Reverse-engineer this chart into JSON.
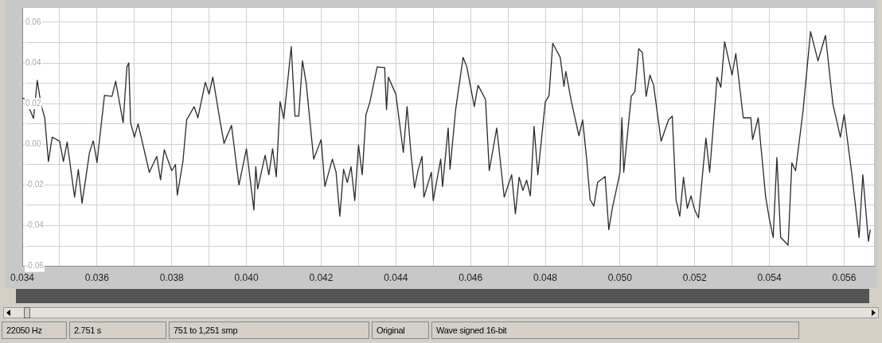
{
  "chart_data": {
    "type": "line",
    "x": [
      0.034,
      0.0341,
      0.0342,
      0.0343,
      0.0344,
      0.0345,
      0.0346,
      0.0347,
      0.0348,
      0.035,
      0.0351,
      0.0352,
      0.0354,
      0.0355,
      0.0356,
      0.0358,
      0.0359,
      0.036,
      0.0362,
      0.0364,
      0.0365,
      0.0367,
      0.0368,
      0.03685,
      0.0369,
      0.037,
      0.0371,
      0.0374,
      0.0376,
      0.0377,
      0.0378,
      0.038,
      0.0381,
      0.03815,
      0.0383,
      0.0384,
      0.0386,
      0.0387,
      0.0389,
      0.039,
      0.0391,
      0.0393,
      0.0394,
      0.0396,
      0.0398,
      0.04,
      0.0402,
      0.04025,
      0.0403,
      0.0405,
      0.0406,
      0.0407,
      0.0408,
      0.0409,
      0.041,
      0.0412,
      0.0413,
      0.0414,
      0.0415,
      0.0416,
      0.0418,
      0.042,
      0.0421,
      0.0423,
      0.0424,
      0.0425,
      0.0426,
      0.0427,
      0.0428,
      0.0429,
      0.043,
      0.0431,
      0.0432,
      0.0433,
      0.0435,
      0.0437,
      0.04375,
      0.0438,
      0.044,
      0.0442,
      0.0443,
      0.0444,
      0.0445,
      0.0446,
      0.0447,
      0.04475,
      0.04495,
      0.045,
      0.0452,
      0.04525,
      0.0454,
      0.04545,
      0.0456,
      0.0458,
      0.0459,
      0.0461,
      0.0462,
      0.0464,
      0.0465,
      0.0467,
      0.0469,
      0.0471,
      0.0472,
      0.0473,
      0.0474,
      0.0475,
      0.0476,
      0.0477,
      0.0478,
      0.048,
      0.0481,
      0.0482,
      0.0484,
      0.0485,
      0.04855,
      0.0487,
      0.0489,
      0.049,
      0.0491,
      0.0492,
      0.0493,
      0.0494,
      0.0496,
      0.0497,
      0.0498,
      0.05,
      0.05005,
      0.0501,
      0.0503,
      0.0504,
      0.0505,
      0.0506,
      0.0507,
      0.0508,
      0.0509,
      0.0511,
      0.0513,
      0.0514,
      0.0515,
      0.0516,
      0.0517,
      0.0518,
      0.0519,
      0.052,
      0.0521,
      0.0523,
      0.0524,
      0.0526,
      0.0527,
      0.0528,
      0.053,
      0.0531,
      0.0533,
      0.0535,
      0.05355,
      0.0537,
      0.0539,
      0.054,
      0.0541,
      0.0542,
      0.0543,
      0.0545,
      0.0546,
      0.0547,
      0.0549,
      0.0551,
      0.0553,
      0.0555,
      0.0557,
      0.0559,
      0.056,
      0.0562,
      0.0564,
      0.0565,
      0.05665,
      0.0567
    ],
    "series": [
      {
        "color": "#2a2a2a",
        "values": [
          0.0227,
          0.022,
          0.017,
          0.0127,
          0.0314,
          0.0196,
          0.013,
          -0.0085,
          0.0035,
          0.0015,
          -0.0085,
          0.001,
          -0.026,
          -0.0124,
          -0.029,
          -0.004,
          0.0017,
          -0.009,
          0.024,
          0.0235,
          0.031,
          0.0106,
          0.038,
          0.04,
          0.0106,
          0.0035,
          0.01,
          -0.0138,
          -0.006,
          -0.0175,
          -0.0027,
          -0.013,
          -0.01,
          -0.025,
          -0.0085,
          0.012,
          0.0185,
          0.013,
          0.0305,
          0.0246,
          0.033,
          0.0108,
          0.0004,
          0.0093,
          -0.02,
          -0.0022,
          -0.0323,
          -0.011,
          -0.022,
          -0.0054,
          -0.015,
          -0.0022,
          -0.016,
          0.021,
          0.0126,
          0.048,
          0.0138,
          0.0138,
          0.041,
          0.03,
          -0.0073,
          0.0023,
          -0.0208,
          -0.0073,
          -0.0138,
          -0.0354,
          -0.0123,
          -0.0188,
          -0.011,
          -0.0277,
          -0.0004,
          -0.015,
          0.0146,
          0.0204,
          0.038,
          0.0377,
          0.017,
          0.033,
          0.0246,
          -0.004,
          0.0185,
          -0.0035,
          -0.0215,
          -0.0123,
          -0.006,
          -0.026,
          -0.0138,
          -0.0277,
          -0.0073,
          -0.0208,
          0.008,
          -0.0123,
          0.017,
          0.0427,
          0.038,
          0.0185,
          0.029,
          0.022,
          -0.013,
          0.008,
          -0.026,
          -0.015,
          -0.0342,
          -0.0162,
          -0.0227,
          -0.0177,
          -0.0254,
          0.0088,
          -0.015,
          0.0208,
          0.024,
          0.0496,
          0.0427,
          0.0285,
          0.0358,
          0.0208,
          0.0042,
          0.012,
          -0.006,
          -0.0273,
          -0.0304,
          -0.0188,
          -0.0158,
          -0.042,
          -0.031,
          -0.0138,
          0.013,
          -0.0138,
          0.0235,
          0.026,
          0.047,
          0.045,
          0.0235,
          0.034,
          0.029,
          0.0015,
          0.012,
          0.0138,
          -0.0273,
          -0.0354,
          -0.0162,
          -0.0315,
          -0.0254,
          -0.0323,
          -0.0362,
          0.003,
          -0.0138,
          0.033,
          0.028,
          0.0504,
          0.034,
          0.0446,
          0.013,
          0.013,
          0.0023,
          0.013,
          -0.026,
          -0.037,
          -0.0458,
          -0.0065,
          -0.0458,
          -0.0496,
          -0.0092,
          -0.013,
          0.0165,
          0.0554,
          0.041,
          0.0535,
          0.0196,
          0.0035,
          0.0146,
          -0.0138,
          -0.0458,
          -0.015,
          -0.0477,
          -0.042
        ]
      }
    ],
    "xlim": [
      0.034,
      0.0568
    ],
    "xticks": [
      0.034,
      {
        "value": 0.035,
        "label": null
      },
      0.036,
      {
        "value": 0.037,
        "label": null
      },
      0.038,
      {
        "value": 0.039,
        "label": null
      },
      {
        "value": 0.04,
        "label": "0.040"
      },
      {
        "value": 0.041,
        "label": null
      },
      0.042,
      {
        "value": 0.043,
        "label": null
      },
      0.044,
      {
        "value": 0.045,
        "label": null
      },
      0.046,
      {
        "value": 0.047,
        "label": null
      },
      0.048,
      {
        "value": 0.049,
        "label": null
      },
      {
        "value": 0.05,
        "label": "0.050"
      },
      {
        "value": 0.051,
        "label": null
      },
      0.052,
      {
        "value": 0.053,
        "label": null
      },
      0.054,
      {
        "value": 0.055,
        "label": null
      },
      0.056
    ],
    "ylim": [
      -0.06,
      0.067
    ],
    "yticks": [
      -0.06,
      {
        "value": -0.05,
        "label": null
      },
      -0.04,
      {
        "value": -0.03,
        "label": null
      },
      -0.02,
      {
        "value": -0.01,
        "label": null
      },
      {
        "value": 0,
        "label": "0.00"
      },
      {
        "value": 0.01,
        "label": null
      },
      0.02,
      {
        "value": 0.03,
        "label": null
      },
      0.04,
      {
        "value": 0.05,
        "label": null
      },
      0.06
    ],
    "grid": true,
    "annotations": [
      "22050 Hz",
      "2.751 s",
      "751 to 1,251 smp",
      "Original",
      "Wave signed 16-bit"
    ]
  }
}
